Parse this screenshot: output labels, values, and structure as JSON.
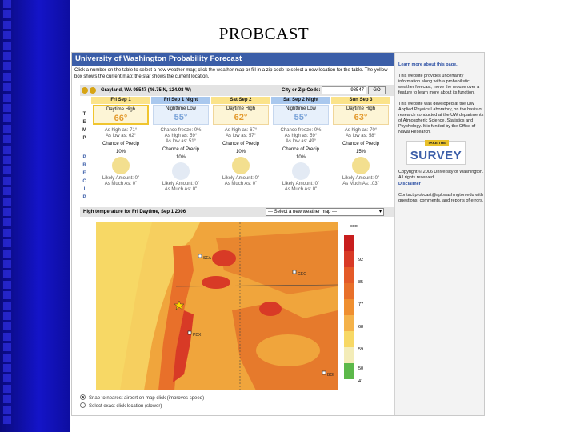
{
  "slide": {
    "title": "PROBCAST"
  },
  "app": {
    "header": "University of Washington Probability Forecast",
    "instructions": "Click a number on the table to select a new weather map; click the weather map or fill in a zip code to select a new location for the table. The yellow box shows the current map; the star shows the current location.",
    "location": "Grayland, WA 98547 (46.75 N, 124.08 W)",
    "zip_label": "City or Zip Code:",
    "zip_value": "98547",
    "go_label": "GO",
    "temp_label": [
      "T",
      "E",
      "M",
      "P"
    ],
    "precip_label": [
      "P",
      "R",
      "E",
      "C",
      "I",
      "P"
    ]
  },
  "days": [
    {
      "header": "Fri Sep 1",
      "kind": "Daytime High",
      "temp": "66°",
      "freeze": "",
      "high_label": "As high as:",
      "high": "71°",
      "low_label": "As low as:",
      "low": "62°",
      "precip_label": "Chance of Precip",
      "precip": "10%",
      "likely_label": "Likely Amount:",
      "likely": "0\"",
      "much_label": "As Much As:",
      "much": "0\""
    },
    {
      "header": "Fri Sep 1 Night",
      "kind": "Nighttime Low",
      "temp": "55°",
      "freeze": "Chance freeze: 0%",
      "high_label": "As high as:",
      "high": "59°",
      "low_label": "As low as:",
      "low": "51°",
      "precip_label": "Chance of Precip",
      "precip": "10%",
      "likely_label": "Likely Amount:",
      "likely": "0\"",
      "much_label": "As Much As:",
      "much": "0\""
    },
    {
      "header": "Sat Sep 2",
      "kind": "Daytime High",
      "temp": "62°",
      "freeze": "",
      "high_label": "As high as:",
      "high": "67°",
      "low_label": "As low as:",
      "low": "57°",
      "precip_label": "Chance of Precip",
      "precip": "10%",
      "likely_label": "Likely Amount:",
      "likely": "0\"",
      "much_label": "As Much As:",
      "much": "0\""
    },
    {
      "header": "Sat Sep 2 Night",
      "kind": "Nighttime Low",
      "temp": "55°",
      "freeze": "Chance freeze: 0%",
      "high_label": "As high as:",
      "high": "59°",
      "low_label": "As low as:",
      "low": "49°",
      "precip_label": "Chance of Precip",
      "precip": "10%",
      "likely_label": "Likely Amount:",
      "likely": "0\"",
      "much_label": "As Much As:",
      "much": "0\""
    },
    {
      "header": "Sun Sep 3",
      "kind": "Daytime High",
      "temp": "63°",
      "freeze": "",
      "high_label": "As high as:",
      "high": "70°",
      "low_label": "As low as:",
      "low": "58°",
      "precip_label": "Chance of Precip",
      "precip": "15%",
      "likely_label": "Likely Amount:",
      "likely": "0\"",
      "much_label": "As Much As:",
      "much": ".03\""
    }
  ],
  "map_bar": {
    "title": "High temperature for Fri Daytime, Sep 1 2006",
    "select": "--- Select a new weather map ---"
  },
  "legend": {
    "unit": "cool",
    "ticks": [
      "92",
      "85",
      "77",
      "68",
      "59",
      "50",
      "41"
    ]
  },
  "map_labels": {
    "sea": "SEA",
    "pdx": "PDX",
    "geg": "GEG",
    "bfi": "BOI"
  },
  "radios": [
    "Snap to nearest airport on map click (improves speed)",
    "Select exact click location (slower)"
  ],
  "sidebar": {
    "learn": "Learn more about this page.",
    "p1": "This website provides uncertainty information along with a probabilistic weather forecast; move the mouse over a feature to learn more about its function.",
    "p2": "This website was developed at the UW Applied Physics Laboratory, on the basis of research conducted at the UW departments of Atmospheric Science, Statistics and Psychology. It is funded by the Office of Naval Research.",
    "take": "TAKE THE",
    "survey": "SURVEY",
    "copyright": "Copyright © 2006 University of Washington. All rights reserved.",
    "disclaimer": "Disclaimer",
    "contact": "Contact probcast@apl.washington.edu with questions, comments, and reports of errors."
  },
  "colors": {
    "header_blue": "#3b5ea8",
    "accent_yellow": "#fbe38a",
    "map_orange": "#e8702a",
    "map_red": "#d83a26"
  }
}
